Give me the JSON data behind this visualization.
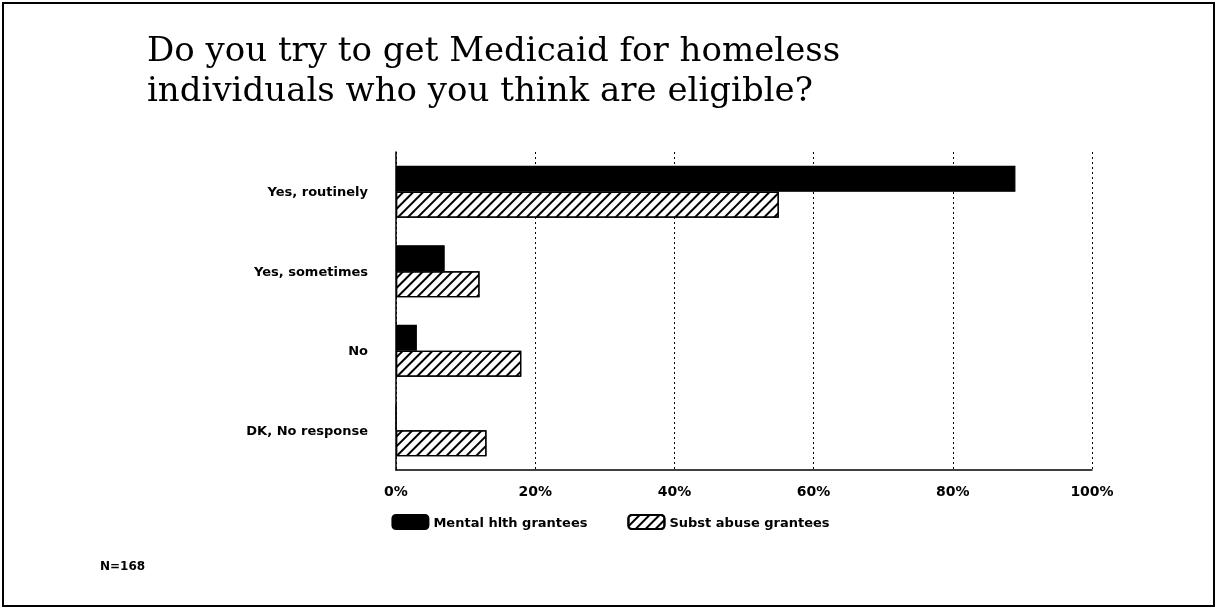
{
  "chart_data": {
    "type": "bar",
    "orientation": "horizontal",
    "title": "Do you try to get Medicaid for homeless\nindividuals who you think are eligible?",
    "categories": [
      "Yes, routinely",
      "Yes, sometimes",
      "No",
      "DK, No response"
    ],
    "series": [
      {
        "name": "Mental hlth grantees",
        "color": "#000000",
        "values": [
          89,
          7,
          3,
          0
        ]
      },
      {
        "name": "Subst abuse grantees",
        "color": "#ffffff",
        "values": [
          55,
          12,
          18,
          13
        ]
      }
    ],
    "xlim": [
      0,
      100
    ],
    "xticks": [
      {
        "value": 0,
        "label": "0%"
      },
      {
        "value": 20,
        "label": "20%"
      },
      {
        "value": 40,
        "label": "40%"
      },
      {
        "value": 60,
        "label": "60%"
      },
      {
        "value": 80,
        "label": "80%"
      },
      {
        "value": 100,
        "label": "100%"
      }
    ],
    "grid": "x",
    "legend": "bottom",
    "annotations": [
      "N=168"
    ]
  }
}
